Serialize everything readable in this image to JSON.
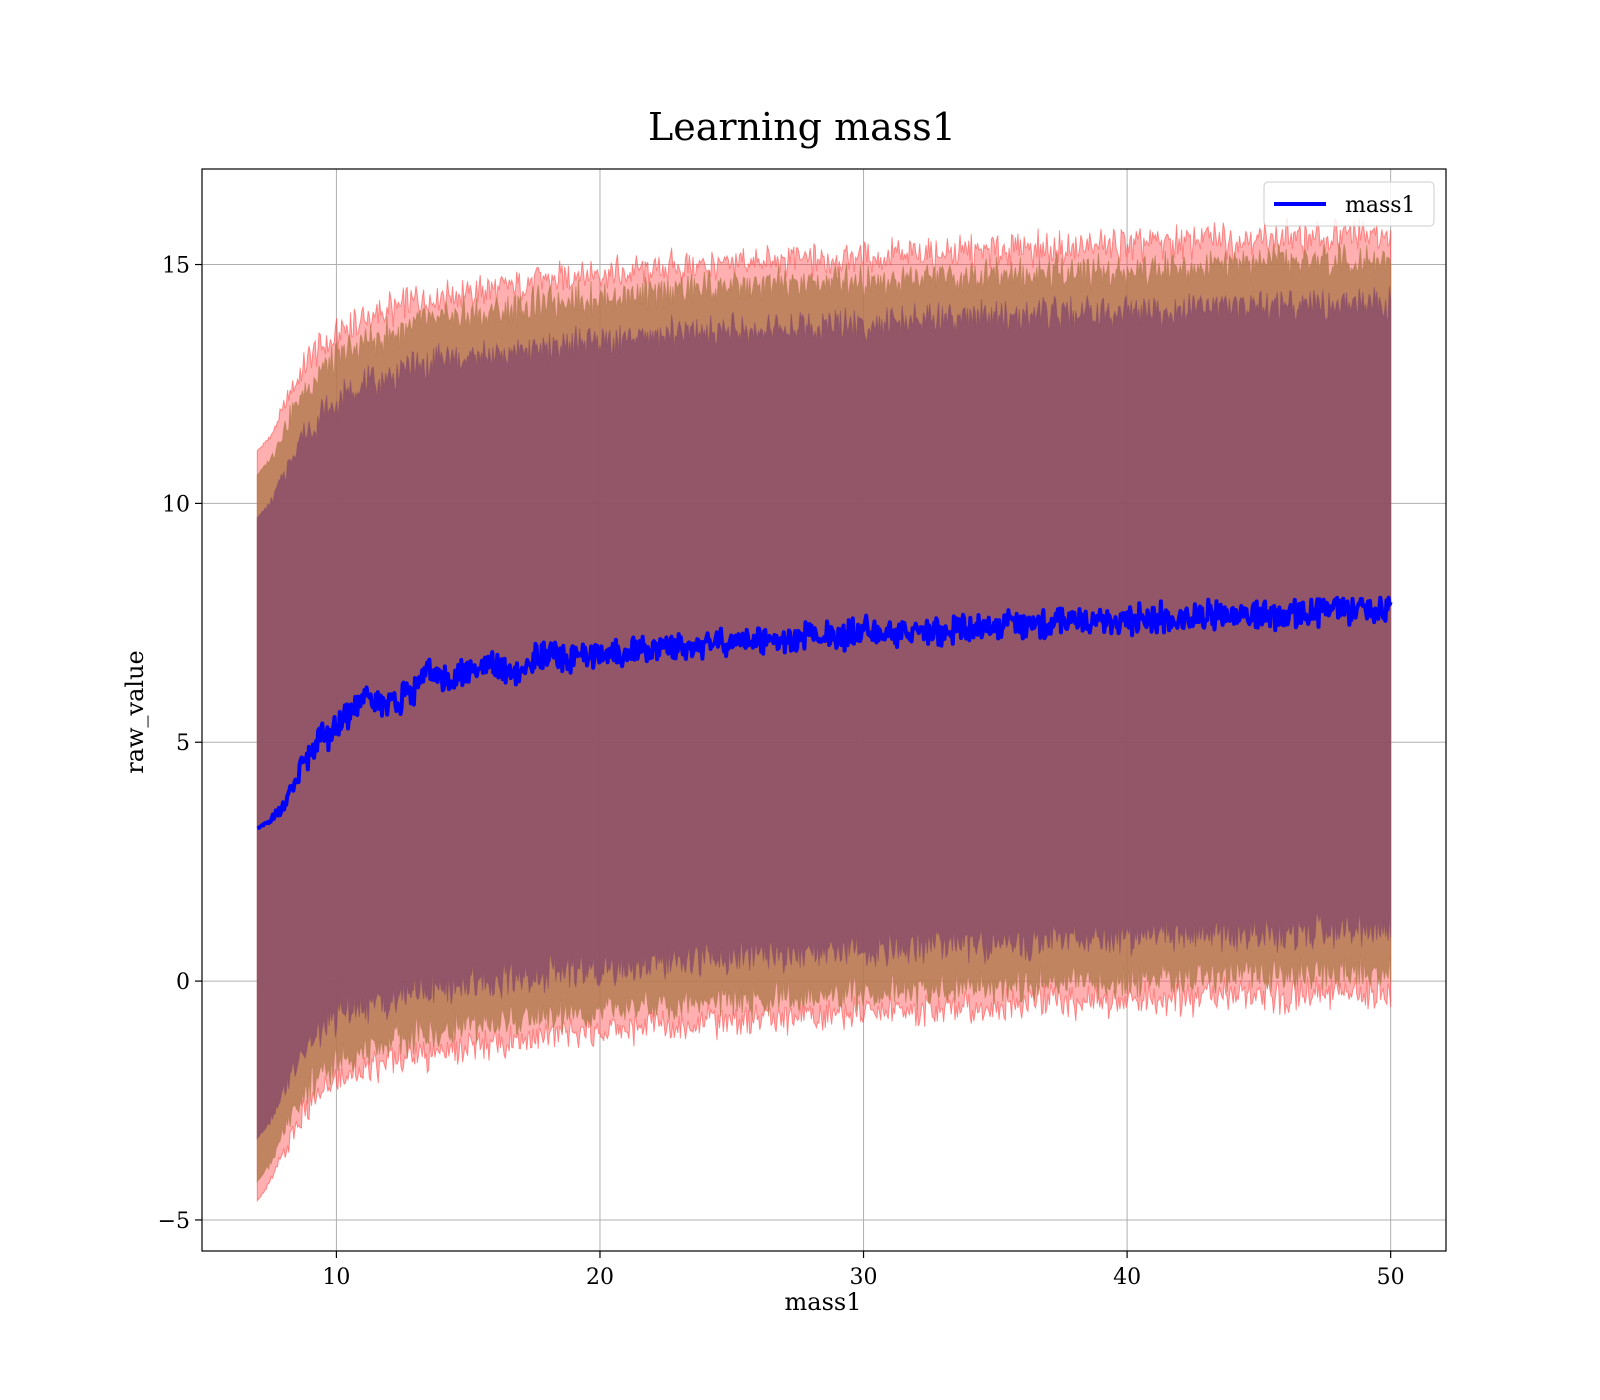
{
  "chart_data": {
    "type": "line",
    "title": "Learning mass1",
    "xlabel": "mass1",
    "ylabel": "raw_value",
    "xlim": [
      4.9,
      52.1
    ],
    "ylim": [
      -5.65,
      17.0
    ],
    "xticks": [
      10,
      20,
      30,
      40,
      50
    ],
    "yticks": [
      -5,
      0,
      5,
      10,
      15
    ],
    "xtick_labels": [
      "10",
      "20",
      "30",
      "40",
      "50"
    ],
    "ytick_labels": [
      "−5",
      "0",
      "5",
      "10",
      "15"
    ],
    "grid": true,
    "legend": {
      "position": "top-right",
      "entries": [
        "mass1"
      ]
    },
    "colors": {
      "line": "#0000ff",
      "band_outer": "#ff4d4d",
      "band_middle": "#b07a4c",
      "band_inner": "#8a4d6a",
      "grid": "#b0b0b0"
    },
    "series": [
      {
        "name": "mass1",
        "x": [
          7.0,
          7.5,
          8.0,
          8.5,
          9.0,
          9.5,
          10.0,
          10.5,
          11.0,
          11.5,
          12.0,
          12.5,
          13.0,
          13.5,
          14.0,
          15.0,
          16.0,
          16.5,
          17.0,
          17.5,
          18.0,
          19.0,
          20.0,
          21.0,
          22.0,
          23.0,
          24.0,
          25.0,
          26.0,
          27.0,
          28.0,
          29.0,
          30.0,
          31.0,
          32.0,
          33.0,
          34.0,
          35.0,
          36.0,
          37.0,
          38.0,
          39.0,
          40.0,
          41.0,
          42.0,
          43.0,
          44.0,
          45.0,
          46.0,
          47.0,
          48.0,
          49.0,
          50.0
        ],
        "y": [
          3.2,
          3.35,
          3.7,
          4.2,
          4.8,
          5.1,
          5.3,
          5.6,
          5.9,
          5.8,
          5.85,
          5.95,
          6.1,
          6.5,
          6.3,
          6.45,
          6.6,
          6.5,
          6.4,
          6.75,
          6.8,
          6.75,
          6.8,
          6.9,
          6.95,
          7.0,
          7.05,
          7.1,
          7.15,
          7.15,
          7.2,
          7.25,
          7.3,
          7.3,
          7.35,
          7.35,
          7.4,
          7.4,
          7.45,
          7.5,
          7.5,
          7.55,
          7.55,
          7.6,
          7.6,
          7.65,
          7.65,
          7.7,
          7.7,
          7.7,
          7.75,
          7.75,
          7.75
        ],
        "band_outer": {
          "upper": [
            11.1,
            11.4,
            12.0,
            12.6,
            13.0,
            13.3,
            13.5,
            13.7,
            13.85,
            13.95,
            14.05,
            14.15,
            14.25,
            14.3,
            14.4,
            14.45,
            14.5,
            14.55,
            14.6,
            14.65,
            14.7,
            14.75,
            14.8,
            14.85,
            14.9,
            14.95,
            15.0,
            15.0,
            15.05,
            15.1,
            15.1,
            15.15,
            15.15,
            15.2,
            15.2,
            15.25,
            15.25,
            15.3,
            15.3,
            15.35,
            15.35,
            15.4,
            15.4,
            15.45,
            15.45,
            15.5,
            15.5,
            15.55,
            15.55,
            15.55,
            15.6,
            15.6,
            15.6
          ],
          "lower": [
            -4.6,
            -4.2,
            -3.6,
            -3.0,
            -2.6,
            -2.3,
            -2.1,
            -1.95,
            -1.85,
            -1.8,
            -1.7,
            -1.6,
            -1.55,
            -1.5,
            -1.45,
            -1.35,
            -1.3,
            -1.25,
            -1.2,
            -1.2,
            -1.15,
            -1.1,
            -1.05,
            -1.0,
            -0.95,
            -0.9,
            -0.85,
            -0.8,
            -0.8,
            -0.75,
            -0.7,
            -0.7,
            -0.65,
            -0.6,
            -0.6,
            -0.55,
            -0.55,
            -0.5,
            -0.5,
            -0.45,
            -0.45,
            -0.4,
            -0.4,
            -0.35,
            -0.35,
            -0.35,
            -0.3,
            -0.3,
            -0.3,
            -0.25,
            -0.25,
            -0.25,
            -0.25
          ]
        },
        "band_middle": {
          "upper": [
            10.6,
            10.9,
            11.5,
            12.1,
            12.5,
            12.8,
            13.0,
            13.2,
            13.35,
            13.45,
            13.55,
            13.65,
            13.75,
            13.8,
            13.9,
            13.95,
            14.0,
            14.05,
            14.1,
            14.15,
            14.2,
            14.25,
            14.3,
            14.35,
            14.4,
            14.45,
            14.5,
            14.5,
            14.55,
            14.6,
            14.6,
            14.65,
            14.65,
            14.7,
            14.7,
            14.75,
            14.75,
            14.8,
            14.8,
            14.85,
            14.85,
            14.9,
            14.9,
            14.95,
            14.95,
            15.0,
            15.0,
            15.05,
            15.05,
            15.05,
            15.1,
            15.1,
            15.1
          ],
          "lower": [
            -4.2,
            -3.8,
            -3.2,
            -2.6,
            -2.2,
            -1.9,
            -1.7,
            -1.55,
            -1.45,
            -1.4,
            -1.3,
            -1.2,
            -1.15,
            -1.1,
            -1.05,
            -0.95,
            -0.9,
            -0.85,
            -0.8,
            -0.8,
            -0.75,
            -0.7,
            -0.65,
            -0.6,
            -0.55,
            -0.5,
            -0.45,
            -0.4,
            -0.4,
            -0.35,
            -0.3,
            -0.3,
            -0.25,
            -0.2,
            -0.2,
            -0.15,
            -0.15,
            -0.1,
            -0.1,
            -0.05,
            -0.05,
            0.0,
            0.0,
            0.05,
            0.05,
            0.05,
            0.1,
            0.1,
            0.1,
            0.15,
            0.15,
            0.15,
            0.15
          ]
        },
        "band_inner": {
          "upper": [
            9.7,
            10.0,
            10.6,
            11.2,
            11.6,
            11.9,
            12.1,
            12.3,
            12.45,
            12.55,
            12.65,
            12.75,
            12.85,
            12.9,
            13.0,
            13.05,
            13.1,
            13.15,
            13.2,
            13.25,
            13.3,
            13.35,
            13.4,
            13.45,
            13.5,
            13.55,
            13.6,
            13.6,
            13.65,
            13.7,
            13.7,
            13.75,
            13.75,
            13.8,
            13.8,
            13.85,
            13.85,
            13.9,
            13.9,
            13.95,
            13.95,
            14.0,
            14.0,
            14.05,
            14.05,
            14.1,
            14.1,
            14.15,
            14.15,
            14.15,
            14.2,
            14.2,
            14.2
          ],
          "lower": [
            -3.3,
            -2.9,
            -2.3,
            -1.7,
            -1.3,
            -1.0,
            -0.8,
            -0.65,
            -0.55,
            -0.5,
            -0.4,
            -0.3,
            -0.25,
            -0.2,
            -0.15,
            -0.05,
            0.0,
            0.05,
            0.1,
            0.1,
            0.15,
            0.2,
            0.25,
            0.3,
            0.35,
            0.4,
            0.45,
            0.5,
            0.5,
            0.55,
            0.6,
            0.6,
            0.65,
            0.7,
            0.7,
            0.75,
            0.75,
            0.8,
            0.8,
            0.85,
            0.85,
            0.9,
            0.9,
            0.95,
            0.95,
            0.95,
            1.0,
            1.0,
            1.0,
            1.05,
            1.05,
            1.05,
            1.05
          ]
        }
      }
    ]
  }
}
